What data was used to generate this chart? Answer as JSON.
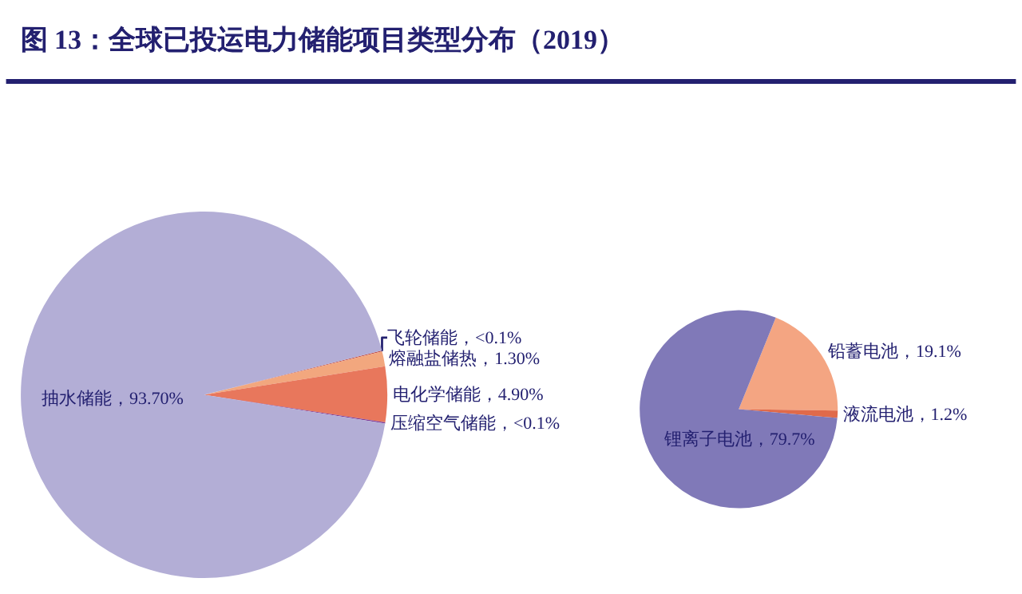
{
  "chart_data": [
    {
      "type": "pie",
      "title": "图 13：全球已投运电力储能项目类型分布（2019）",
      "categories": [
        "飞轮储能",
        "熔融盐储热",
        "电化学储能",
        "压缩空气储能",
        "抽水储能"
      ],
      "values": [
        0.1,
        1.3,
        4.9,
        0.1,
        93.7
      ],
      "value_labels": [
        "<0.1%",
        "1.30%",
        "4.90%",
        "<0.1%",
        "93.70%"
      ],
      "colors": [
        "#c0504d",
        "#f2a77e",
        "#e8775c",
        "#7f3f98",
        "#b3aed6"
      ]
    },
    {
      "type": "pie",
      "categories": [
        "铅蓄电池",
        "液流电池",
        "锂离子电池"
      ],
      "values": [
        19.1,
        1.2,
        79.7
      ],
      "value_labels": [
        "19.1%",
        "1.2%",
        "79.7%"
      ],
      "colors": [
        "#f4a582",
        "#e06a4a",
        "#8079b8"
      ]
    }
  ]
}
